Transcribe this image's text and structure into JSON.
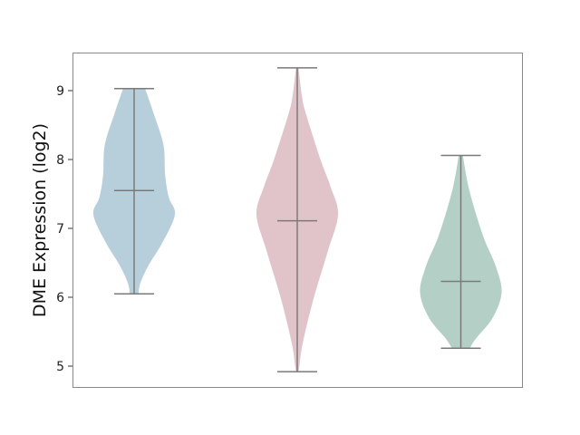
{
  "chart_data": {
    "type": "violin",
    "title": "",
    "xlabel": "",
    "ylabel": "DME Expression (log2)",
    "ylim": [
      4.7,
      9.55
    ],
    "yticks": [
      5,
      6,
      7,
      8,
      9
    ],
    "grid": false,
    "legend": "none",
    "line_color": "#7a7a7a",
    "series": [
      {
        "color": "#b6cfdb",
        "min": 6.05,
        "median": 7.55,
        "max": 9.03,
        "density": [
          [
            9.03,
            0.27
          ],
          [
            8.65,
            0.49
          ],
          [
            8.21,
            0.72
          ],
          [
            7.78,
            0.76
          ],
          [
            7.45,
            0.85
          ],
          [
            7.2,
            1.0
          ],
          [
            6.8,
            0.7
          ],
          [
            6.46,
            0.35
          ],
          [
            6.2,
            0.15
          ],
          [
            6.05,
            0.11
          ]
        ]
      },
      {
        "color": "#e0c4ca",
        "min": 4.92,
        "median": 7.11,
        "max": 9.33,
        "density": [
          [
            9.33,
            0.03
          ],
          [
            8.9,
            0.12
          ],
          [
            8.65,
            0.22
          ],
          [
            8.0,
            0.57
          ],
          [
            7.6,
            0.82
          ],
          [
            7.2,
            1.0
          ],
          [
            6.67,
            0.75
          ],
          [
            6.0,
            0.41
          ],
          [
            5.35,
            0.14
          ],
          [
            5.0,
            0.05
          ],
          [
            4.92,
            0.03
          ]
        ]
      },
      {
        "color": "#b4d0c6",
        "min": 5.26,
        "median": 6.23,
        "max": 8.06,
        "density": [
          [
            8.06,
            0.05
          ],
          [
            7.55,
            0.21
          ],
          [
            6.9,
            0.54
          ],
          [
            6.46,
            0.85
          ],
          [
            6.07,
            1.0
          ],
          [
            5.7,
            0.78
          ],
          [
            5.4,
            0.37
          ],
          [
            5.26,
            0.22
          ]
        ]
      }
    ]
  }
}
